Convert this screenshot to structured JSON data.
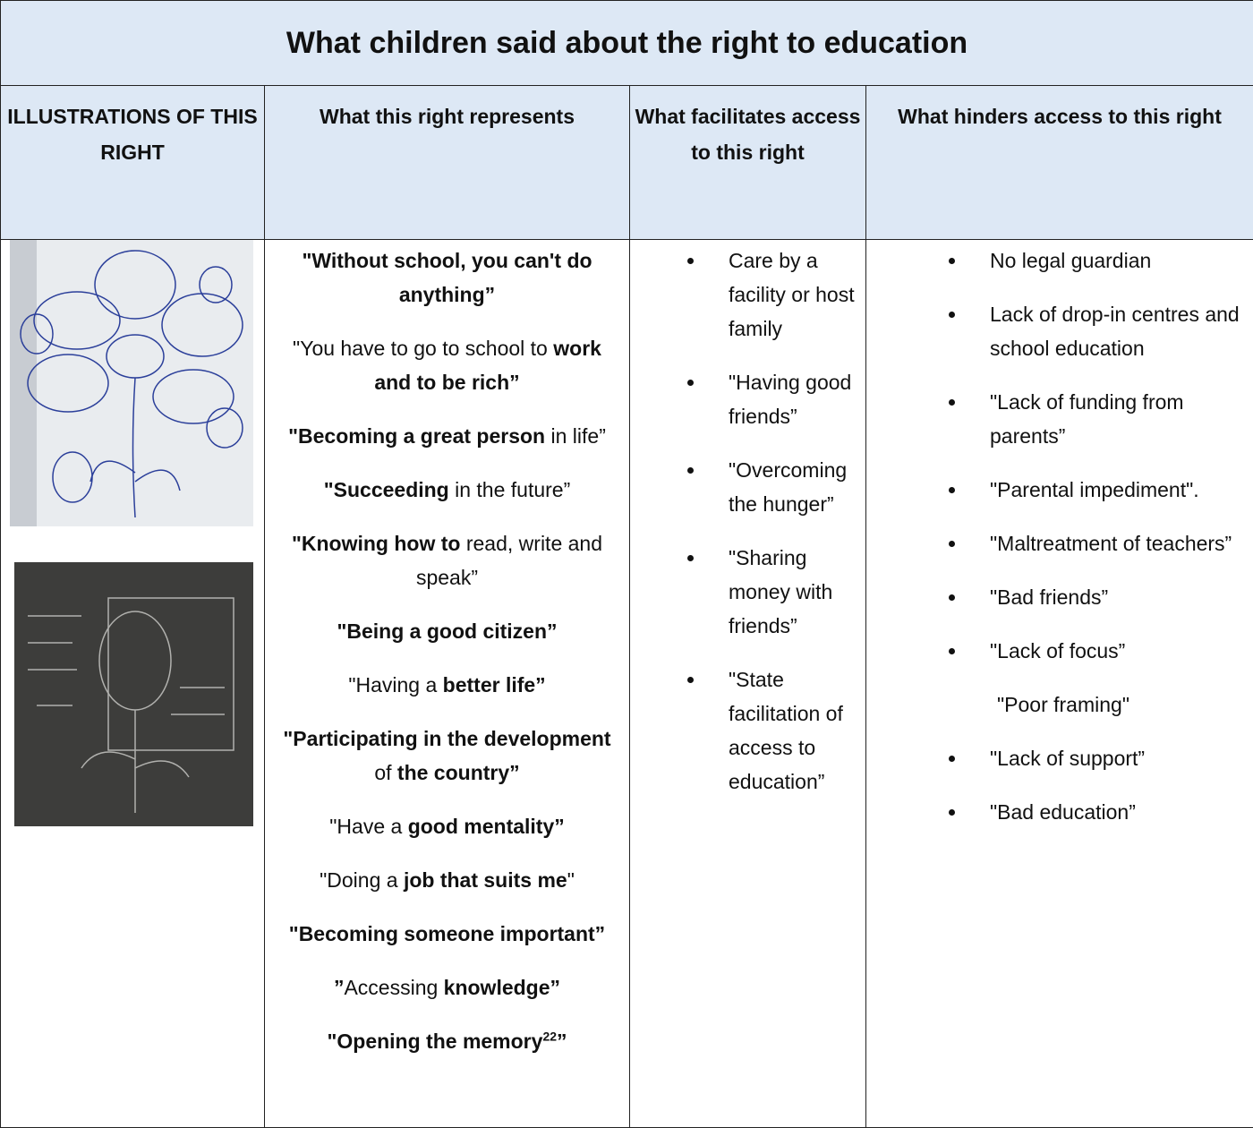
{
  "table": {
    "title": "What children said about the right to education",
    "headers": [
      "ILLUSTRATIONS OF THIS RIGHT",
      "What this right represents",
      "What facilitates access to this right",
      "What hinders access to this right"
    ],
    "represents": [
      [
        {
          "text": "\"Without school, you can't do anything”",
          "style": "bold"
        }
      ],
      [
        {
          "text": "\"You have to go to school to ",
          "style": "normal"
        },
        {
          "text": "work and to be rich”",
          "style": "bold"
        }
      ],
      [
        {
          "text": "\"Becoming a great person",
          "style": "bold"
        },
        {
          "text": " in life”",
          "style": "normal"
        }
      ],
      [
        {
          "text": "\"Succeeding",
          "style": "bold"
        },
        {
          "text": " in the future”",
          "style": "normal"
        }
      ],
      [
        {
          "text": "\"Knowing how to",
          "style": "bold"
        },
        {
          "text": " read, write and speak”",
          "style": "normal"
        }
      ],
      [
        {
          "text": "\"Being a good citizen”",
          "style": "bold"
        }
      ],
      [
        {
          "text": "\"Having a ",
          "style": "normal"
        },
        {
          "text": "better life”",
          "style": "bold"
        }
      ],
      [
        {
          "text": "\"Participating in the development",
          "style": "bold"
        },
        {
          "text": " of ",
          "style": "normal"
        },
        {
          "text": "the country”",
          "style": "bold"
        }
      ],
      [
        {
          "text": "\"Have a ",
          "style": "normal"
        },
        {
          "text": "good mentality”",
          "style": "bold"
        }
      ],
      [
        {
          "text": "\"Doing a ",
          "style": "normal"
        },
        {
          "text": "job that suits me",
          "style": "bold"
        },
        {
          "text": "\"",
          "style": "normal"
        }
      ],
      [
        {
          "text": "\"Becoming someone important”",
          "style": "bold"
        }
      ],
      [
        {
          "text": "”",
          "style": "bold"
        },
        {
          "text": "Accessing ",
          "style": "normal"
        },
        {
          "text": "knowledge”",
          "style": "bold"
        }
      ],
      [
        {
          "text": "\"Opening the memory",
          "style": "bold"
        },
        {
          "text": "22",
          "style": "sup"
        },
        {
          "text": "”",
          "style": "bold"
        }
      ]
    ],
    "facilitates": [
      "Care by a facility or host family",
      "\"Having good friends”",
      "\"Overcoming the hunger”",
      "\"Sharing money with friends”",
      "\"State facilitation of access to education”"
    ],
    "hinders": [
      {
        "text": "No legal guardian",
        "bullet": true
      },
      {
        "text": "Lack of drop-in centres and school education",
        "bullet": true
      },
      {
        "text": "\"Lack of funding from parents”",
        "bullet": true
      },
      {
        "text": "\"Parental impediment\".",
        "bullet": true
      },
      {
        "text": "\"Maltreatment of teachers”",
        "bullet": true
      },
      {
        "text": "\"Bad friends”",
        "bullet": true
      },
      {
        "text": "\"Lack of focus”",
        "bullet": true
      },
      {
        "text": "\"Poor framing\"",
        "bullet": false
      },
      {
        "text": "\"Lack of support”",
        "bullet": true
      },
      {
        "text": "\"Bad education”",
        "bullet": true
      }
    ]
  }
}
